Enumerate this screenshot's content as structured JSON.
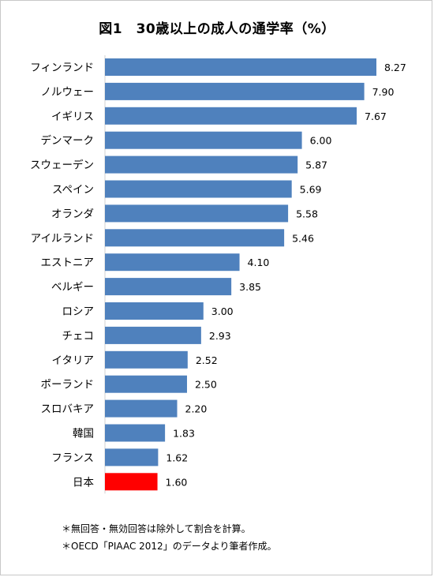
{
  "chart_data": {
    "type": "bar",
    "orientation": "horizontal",
    "title": "図1　30歳以上の成人の通学率（%）",
    "categories": [
      "フィンランド",
      "ノルウェー",
      "イギリス",
      "デンマーク",
      "スウェーデン",
      "スペイン",
      "オランダ",
      "アイルランド",
      "エストニア",
      "ベルギー",
      "ロシア",
      "チェコ",
      "イタリア",
      "ポーランド",
      "スロバキア",
      "韓国",
      "フランス",
      "日本"
    ],
    "values": [
      8.27,
      7.9,
      7.67,
      6.0,
      5.87,
      5.69,
      5.58,
      5.46,
      4.1,
      3.85,
      3.0,
      2.93,
      2.52,
      2.5,
      2.2,
      1.83,
      1.62,
      1.6
    ],
    "value_labels": [
      "8.27",
      "7.90",
      "7.67",
      "6.00",
      "5.87",
      "5.69",
      "5.58",
      "5.46",
      "4.10",
      "3.85",
      "3.00",
      "2.93",
      "2.52",
      "2.50",
      "2.20",
      "1.83",
      "1.62",
      "1.60"
    ],
    "xlim": [
      0,
      8.27
    ],
    "grid": false,
    "legend": "none",
    "colors": {
      "bar": "#4f81bd",
      "highlight": "#ff0000",
      "highlight_category": "日本"
    }
  },
  "notes": [
    "＊無回答・無効回答は除外して割合を計算。",
    "＊OECD「PIAAC 2012」のデータより筆者作成。"
  ]
}
